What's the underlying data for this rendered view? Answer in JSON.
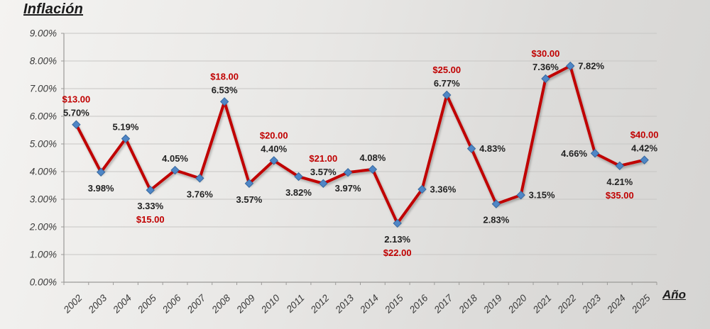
{
  "chart_data": {
    "type": "line",
    "title": "Inflación",
    "xlabel": "Año",
    "ylabel": "",
    "ylim": [
      0,
      9
    ],
    "grid": true,
    "legend": "none",
    "yticks_labels": [
      "0.00%",
      "1.00%",
      "2.00%",
      "3.00%",
      "4.00%",
      "5.00%",
      "6.00%",
      "7.00%",
      "8.00%",
      "9.00%"
    ],
    "categories": [
      "2002",
      "2003",
      "2004",
      "2005",
      "2006",
      "2007",
      "2008",
      "2009",
      "2010",
      "2011",
      "2012",
      "2013",
      "2014",
      "2015",
      "2016",
      "2017",
      "2018",
      "2019",
      "2020",
      "2021",
      "2022",
      "2023",
      "2024",
      "2025"
    ],
    "series": [
      {
        "name": "Inflación",
        "color": "#C00000",
        "marker": "diamond",
        "marker_color": "#4F86C6",
        "marker_edge_color": "#38699F",
        "label_color": "#222222",
        "dollar_color": "#C00000",
        "values": [
          5.7,
          3.98,
          5.19,
          3.33,
          4.05,
          3.76,
          6.53,
          3.57,
          4.4,
          3.82,
          3.57,
          3.97,
          4.08,
          2.13,
          3.36,
          6.77,
          4.83,
          2.83,
          3.15,
          7.36,
          7.82,
          4.66,
          4.21,
          4.42
        ],
        "value_labels": [
          "5.70%",
          "3.98%",
          "5.19%",
          "3.33%",
          "4.05%",
          "3.76%",
          "6.53%",
          "3.57%",
          "4.40%",
          "3.82%",
          "3.57%",
          "3.97%",
          "4.08%",
          "2.13%",
          "3.36%",
          "6.77%",
          "4.83%",
          "2.83%",
          "3.15%",
          "7.36%",
          "7.82%",
          "4.66%",
          "4.21%",
          "4.42%"
        ],
        "label_placement": [
          "above",
          "below",
          "above",
          "below",
          "above",
          "below",
          "above",
          "below",
          "above",
          "below",
          "above",
          "below",
          "above",
          "below",
          "right",
          "above",
          "right",
          "below",
          "right",
          "above",
          "right",
          "left",
          "below",
          "above"
        ],
        "dollar_labels": [
          "$13.00",
          null,
          null,
          "$15.00",
          null,
          null,
          "$18.00",
          null,
          "$20.00",
          null,
          "$21.00",
          null,
          null,
          "$22.00",
          null,
          "$25.00",
          null,
          null,
          null,
          "$30.00",
          null,
          null,
          "$35.00",
          "$40.00"
        ]
      }
    ]
  }
}
